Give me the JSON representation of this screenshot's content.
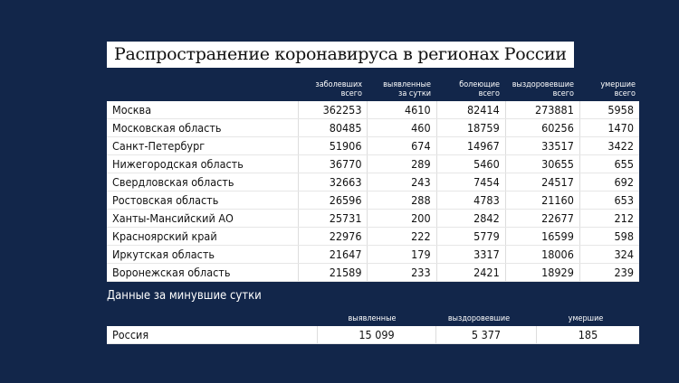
{
  "title": "Распространение коронавируса в регионах России",
  "table": {
    "headers": [
      [
        "заболевших",
        "всего"
      ],
      [
        "выявленные",
        "за сутки"
      ],
      [
        "болеющие",
        "всего"
      ],
      [
        "выздоровевшие",
        "всего"
      ],
      [
        "умершие",
        "всего"
      ]
    ],
    "rows": [
      [
        "Москва",
        "362253",
        "4610",
        "82414",
        "273881",
        "5958"
      ],
      [
        "Московская область",
        "80485",
        "460",
        "18759",
        "60256",
        "1470"
      ],
      [
        "Санкт-Петербург",
        "51906",
        "674",
        "14967",
        "33517",
        "3422"
      ],
      [
        "Нижегородская область",
        "36770",
        "289",
        "5460",
        "30655",
        "655"
      ],
      [
        "Свердловская область",
        "32663",
        "243",
        "7454",
        "24517",
        "692"
      ],
      [
        "Ростовская область",
        "26596",
        "288",
        "4783",
        "21160",
        "653"
      ],
      [
        "Ханты-Мансийский АО",
        "25731",
        "200",
        "2842",
        "22677",
        "212"
      ],
      [
        "Красноярский край",
        "22976",
        "222",
        "5779",
        "16599",
        "598"
      ],
      [
        "Иркутская область",
        "21647",
        "179",
        "3317",
        "18006",
        "324"
      ],
      [
        "Воронежская область",
        "21589",
        "233",
        "2421",
        "18929",
        "239"
      ]
    ]
  },
  "summary": {
    "title": "Данные за минувшие сутки",
    "headers": [
      "выявленные",
      "выздоровевшие",
      "умершие"
    ],
    "row": [
      "Россия",
      "15 099",
      "5 377",
      "185"
    ]
  },
  "colors": {
    "background": "#12264a",
    "table": "#ffffff"
  }
}
